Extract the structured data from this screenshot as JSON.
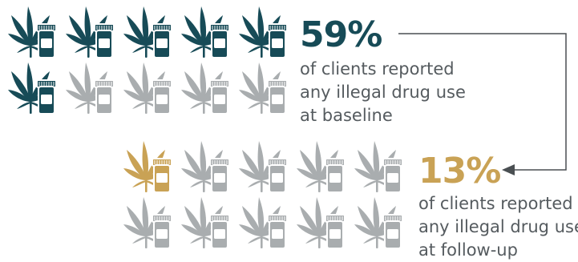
{
  "colors": {
    "dark_teal": "#174b57",
    "gold": "#c9a255",
    "gray": "#a9adaf",
    "caption_text": "#555b5f",
    "connector_line": "#4a4f52"
  },
  "icon_semantic": "cannabis-leaf-and-pill-bottle-icon",
  "baseline": {
    "percent": "59%",
    "caption_lines": [
      "of clients reported",
      "any illegal drug use",
      "at baseline"
    ],
    "icon_total": 10,
    "icon_highlighted": 6,
    "highlight_fraction": 0.59,
    "highlight_color": "#174b57"
  },
  "followup": {
    "percent": "13%",
    "caption_lines": [
      "of clients reported",
      "any illegal drug use",
      "at follow-up"
    ],
    "icon_total": 10,
    "icon_highlighted": 1,
    "highlight_fraction": 0.13,
    "highlight_color": "#c9a255"
  }
}
